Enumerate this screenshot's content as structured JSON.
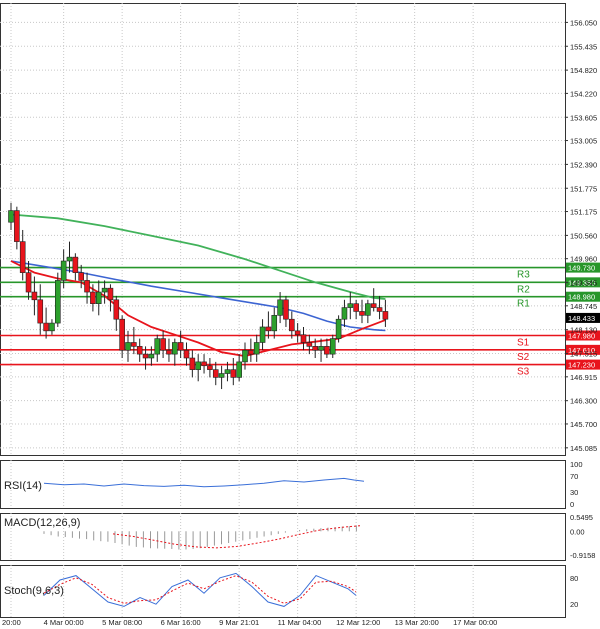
{
  "chart_data": {
    "type": "candlestick",
    "colors": {
      "up": "#2ca02c",
      "down": "#e8141c",
      "ma_fast": "#e8141c",
      "ma_mid": "#3c64d2",
      "ma_slow": "#41b25a",
      "resistance": "#27962a",
      "support": "#e8141c",
      "grid": "#c8c8c8",
      "osc_line": "#3a6fd8"
    },
    "price_axis": {
      "ylim": [
        144.9,
        156.55
      ],
      "ticks": [
        "156.050",
        "155.435",
        "154.820",
        "154.220",
        "153.605",
        "153.005",
        "152.390",
        "151.775",
        "151.175",
        "150.560",
        "149.960",
        "149.345",
        "148.745",
        "148.130",
        "147.515",
        "146.915",
        "146.300",
        "145.700",
        "145.085"
      ]
    },
    "time_axis": {
      "labels": [
        "20:00",
        "4 Mar 00:00",
        "5 Mar 08:00",
        "6 Mar 16:00",
        "9 Mar 21:01",
        "11 Mar 04:00",
        "12 Mar 12:00",
        "13 Mar 20:00",
        "17 Mar 00:00"
      ],
      "label_index": [
        0,
        9,
        19,
        29,
        39,
        49,
        59,
        69,
        79
      ]
    },
    "levels": [
      {
        "name": "R3",
        "value": 149.73,
        "tag": "149.730",
        "kind": "resistance"
      },
      {
        "name": "R2",
        "value": 149.35,
        "tag": "149.350",
        "kind": "resistance"
      },
      {
        "name": "R1",
        "value": 148.98,
        "tag": "148.980",
        "kind": "resistance"
      },
      {
        "name": "S1",
        "value": 147.98,
        "tag": "147.980",
        "kind": "support"
      },
      {
        "name": "S2",
        "value": 147.61,
        "tag": "147.610",
        "kind": "support"
      },
      {
        "name": "S3",
        "value": 147.23,
        "tag": "147.230",
        "kind": "support"
      }
    ],
    "current_price": {
      "value": 148.433,
      "tag": "148.433"
    },
    "candles": [
      [
        150.9,
        151.4,
        150.7,
        151.2
      ],
      [
        151.2,
        151.3,
        150.2,
        150.4
      ],
      [
        150.4,
        150.7,
        149.4,
        149.6
      ],
      [
        149.6,
        149.9,
        148.9,
        149.1
      ],
      [
        149.1,
        149.5,
        148.5,
        148.9
      ],
      [
        148.9,
        149.3,
        148.0,
        148.3
      ],
      [
        148.3,
        148.7,
        147.9,
        148.1
      ],
      [
        148.1,
        148.4,
        148.0,
        148.3
      ],
      [
        148.3,
        149.6,
        148.2,
        149.4
      ],
      [
        149.4,
        150.2,
        149.2,
        149.9
      ],
      [
        149.9,
        150.4,
        149.6,
        150.0
      ],
      [
        150.0,
        150.1,
        149.4,
        149.6
      ],
      [
        149.6,
        149.8,
        149.2,
        149.4
      ],
      [
        149.4,
        149.6,
        148.8,
        149.1
      ],
      [
        149.1,
        149.3,
        148.6,
        148.8
      ],
      [
        148.8,
        149.4,
        148.5,
        149.1
      ],
      [
        149.1,
        149.4,
        148.8,
        149.2
      ],
      [
        149.2,
        149.3,
        148.6,
        148.9
      ],
      [
        148.9,
        149.0,
        148.1,
        148.4
      ],
      [
        148.4,
        148.5,
        147.4,
        147.6
      ],
      [
        147.6,
        148.1,
        147.3,
        147.8
      ],
      [
        147.8,
        148.2,
        147.5,
        147.7
      ],
      [
        147.7,
        147.9,
        147.3,
        147.5
      ],
      [
        147.5,
        147.7,
        147.1,
        147.4
      ],
      [
        147.4,
        147.7,
        147.2,
        147.5
      ],
      [
        147.5,
        148.0,
        147.3,
        147.9
      ],
      [
        147.9,
        148.1,
        147.4,
        147.6
      ],
      [
        147.6,
        147.9,
        147.3,
        147.5
      ],
      [
        147.5,
        147.9,
        147.2,
        147.8
      ],
      [
        147.8,
        148.1,
        147.4,
        147.6
      ],
      [
        147.6,
        147.8,
        147.2,
        147.4
      ],
      [
        147.4,
        147.6,
        146.9,
        147.1
      ],
      [
        147.1,
        147.5,
        146.8,
        147.3
      ],
      [
        147.3,
        147.5,
        147.0,
        147.2
      ],
      [
        147.2,
        147.4,
        146.9,
        147.1
      ],
      [
        147.1,
        147.3,
        146.7,
        146.9
      ],
      [
        146.9,
        147.2,
        146.6,
        147.0
      ],
      [
        147.0,
        147.3,
        146.8,
        147.1
      ],
      [
        147.1,
        147.4,
        146.7,
        146.9
      ],
      [
        146.9,
        147.5,
        146.8,
        147.3
      ],
      [
        147.3,
        147.8,
        147.1,
        147.6
      ],
      [
        147.6,
        147.9,
        147.3,
        147.5
      ],
      [
        147.5,
        148.0,
        147.3,
        147.8
      ],
      [
        147.8,
        148.4,
        147.6,
        148.2
      ],
      [
        148.2,
        148.6,
        147.9,
        148.1
      ],
      [
        148.1,
        148.7,
        147.9,
        148.5
      ],
      [
        148.5,
        149.1,
        148.3,
        148.9
      ],
      [
        148.9,
        149.0,
        148.2,
        148.4
      ],
      [
        148.4,
        148.6,
        147.9,
        148.1
      ],
      [
        148.1,
        148.3,
        147.8,
        148.0
      ],
      [
        148.0,
        148.2,
        147.6,
        147.8
      ],
      [
        147.8,
        148.0,
        147.5,
        147.7
      ],
      [
        147.7,
        147.9,
        147.4,
        147.6
      ],
      [
        147.6,
        147.9,
        147.3,
        147.7
      ],
      [
        147.7,
        147.9,
        147.4,
        147.5
      ],
      [
        147.5,
        148.0,
        147.4,
        147.9
      ],
      [
        147.9,
        148.5,
        147.8,
        148.4
      ],
      [
        148.4,
        148.9,
        148.2,
        148.7
      ],
      [
        148.7,
        149.1,
        148.4,
        148.8
      ],
      [
        148.8,
        148.9,
        148.4,
        148.6
      ],
      [
        148.6,
        148.9,
        148.3,
        148.5
      ],
      [
        148.5,
        148.9,
        148.3,
        148.8
      ],
      [
        148.8,
        149.2,
        148.6,
        148.7
      ],
      [
        148.7,
        149.0,
        148.4,
        148.6
      ],
      [
        148.6,
        148.9,
        148.2,
        148.4
      ]
    ],
    "ma_fast": [
      [
        0,
        149.9
      ],
      [
        4,
        149.6
      ],
      [
        8,
        149.45
      ],
      [
        12,
        149.35
      ],
      [
        16,
        149.0
      ],
      [
        20,
        148.5
      ],
      [
        24,
        148.2
      ],
      [
        28,
        148.0
      ],
      [
        32,
        147.8
      ],
      [
        36,
        147.55
      ],
      [
        40,
        147.45
      ],
      [
        44,
        147.6
      ],
      [
        48,
        147.75
      ],
      [
        52,
        147.82
      ],
      [
        56,
        147.9
      ],
      [
        60,
        148.15
      ],
      [
        64,
        148.38
      ]
    ],
    "ma_mid": [
      [
        0,
        149.9
      ],
      [
        6,
        149.75
      ],
      [
        12,
        149.6
      ],
      [
        18,
        149.42
      ],
      [
        24,
        149.25
      ],
      [
        30,
        149.1
      ],
      [
        36,
        148.95
      ],
      [
        42,
        148.8
      ],
      [
        46,
        148.7
      ],
      [
        50,
        148.55
      ],
      [
        54,
        148.35
      ],
      [
        58,
        148.2
      ],
      [
        62,
        148.13
      ],
      [
        64,
        148.11
      ]
    ],
    "ma_slow": [
      [
        0,
        151.1
      ],
      [
        8,
        151.0
      ],
      [
        16,
        150.8
      ],
      [
        24,
        150.55
      ],
      [
        32,
        150.3
      ],
      [
        40,
        149.95
      ],
      [
        46,
        149.65
      ],
      [
        52,
        149.35
      ],
      [
        58,
        149.1
      ],
      [
        62,
        148.95
      ],
      [
        64,
        148.92
      ]
    ],
    "rsi": {
      "label": "RSI(14)",
      "ylim": [
        0,
        100
      ],
      "ticks": [
        "100",
        "70",
        "30",
        "0"
      ],
      "values": [
        [
          0,
          52
        ],
        [
          4,
          48
        ],
        [
          8,
          50
        ],
        [
          12,
          45
        ],
        [
          16,
          50
        ],
        [
          20,
          46
        ],
        [
          24,
          44
        ],
        [
          28,
          47
        ],
        [
          32,
          43
        ],
        [
          36,
          45
        ],
        [
          40,
          48
        ],
        [
          44,
          52
        ],
        [
          48,
          58
        ],
        [
          52,
          55
        ],
        [
          56,
          60
        ],
        [
          60,
          64
        ],
        [
          62,
          60
        ],
        [
          64,
          57
        ]
      ]
    },
    "macd": {
      "label": "MACD(12,26,9)",
      "ylim": [
        -0.95,
        0.55
      ],
      "ticks": [
        "0.5495",
        "0.00",
        "-0.9158"
      ],
      "hist": [
        -0.1,
        -0.15,
        -0.2,
        -0.22,
        -0.25,
        -0.28,
        -0.3,
        -0.35,
        -0.38,
        -0.4,
        -0.45,
        -0.5,
        -0.55,
        -0.6,
        -0.62,
        -0.65,
        -0.66,
        -0.67,
        -0.68,
        -0.7,
        -0.7,
        -0.68,
        -0.65,
        -0.6,
        -0.55,
        -0.5,
        -0.45,
        -0.4,
        -0.35,
        -0.3,
        -0.25,
        -0.2,
        -0.15,
        -0.1,
        -0.05,
        0.0,
        0.05,
        0.08,
        0.1,
        0.12,
        0.14,
        0.16,
        0.18,
        0.2,
        0.22
      ],
      "signal": [
        [
          20,
          -0.1
        ],
        [
          26,
          -0.2
        ],
        [
          32,
          -0.35
        ],
        [
          38,
          -0.5
        ],
        [
          44,
          -0.6
        ],
        [
          50,
          -0.64
        ],
        [
          56,
          -0.58
        ],
        [
          62,
          -0.45
        ],
        [
          68,
          -0.3
        ],
        [
          74,
          -0.12
        ],
        [
          80,
          0.05
        ],
        [
          86,
          0.15
        ],
        [
          92,
          0.22
        ]
      ]
    },
    "stoch": {
      "label": "Stoch(9,6,3)",
      "ylim": [
        0,
        100
      ],
      "ticks": [
        "80",
        "20"
      ],
      "k": [
        [
          0,
          40
        ],
        [
          4,
          75
        ],
        [
          8,
          85
        ],
        [
          12,
          55
        ],
        [
          16,
          25
        ],
        [
          20,
          15
        ],
        [
          24,
          35
        ],
        [
          28,
          20
        ],
        [
          32,
          60
        ],
        [
          36,
          75
        ],
        [
          40,
          45
        ],
        [
          44,
          80
        ],
        [
          48,
          90
        ],
        [
          52,
          60
        ],
        [
          56,
          25
        ],
        [
          60,
          15
        ],
        [
          64,
          40
        ],
        [
          68,
          85
        ],
        [
          72,
          70
        ],
        [
          76,
          55
        ],
        [
          78,
          40
        ]
      ],
      "d": [
        [
          0,
          45
        ],
        [
          4,
          65
        ],
        [
          8,
          80
        ],
        [
          12,
          65
        ],
        [
          16,
          35
        ],
        [
          20,
          22
        ],
        [
          24,
          28
        ],
        [
          28,
          30
        ],
        [
          32,
          50
        ],
        [
          36,
          68
        ],
        [
          40,
          55
        ],
        [
          44,
          72
        ],
        [
          48,
          85
        ],
        [
          52,
          70
        ],
        [
          56,
          38
        ],
        [
          60,
          22
        ],
        [
          64,
          32
        ],
        [
          68,
          70
        ],
        [
          72,
          72
        ],
        [
          76,
          60
        ],
        [
          78,
          48
        ]
      ]
    }
  }
}
